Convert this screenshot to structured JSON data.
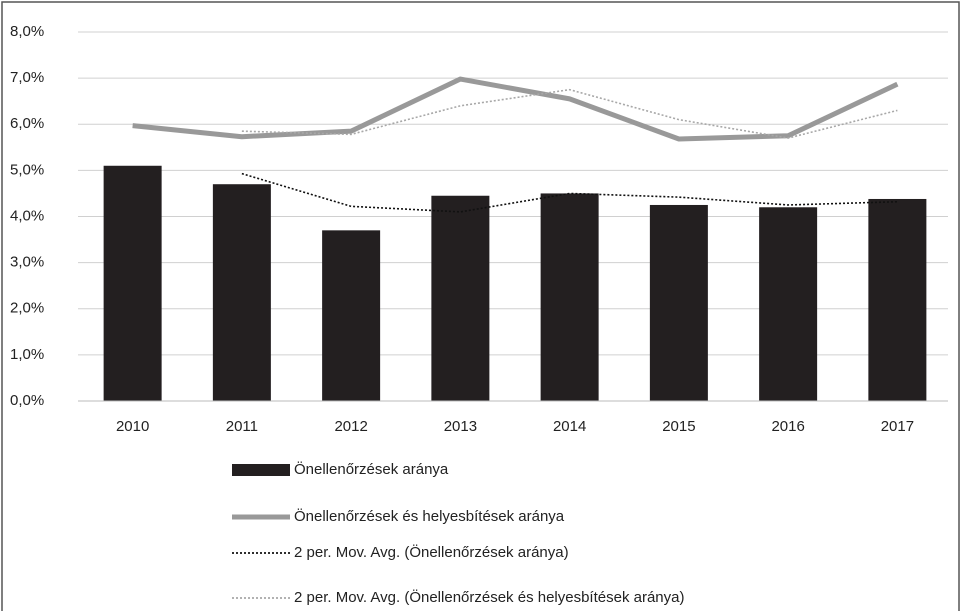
{
  "chart_data": {
    "type": "bar",
    "categories": [
      "2010",
      "2011",
      "2012",
      "2013",
      "2014",
      "2015",
      "2016",
      "2017"
    ],
    "series": [
      {
        "name": "Önellenőrzések aránya",
        "type": "bar",
        "color": "#231f20",
        "values": [
          5.1,
          4.7,
          3.7,
          4.45,
          4.5,
          4.25,
          4.2,
          4.38
        ]
      },
      {
        "name": "Önellenőrzések és helyesbítések aránya",
        "type": "line",
        "color": "#999999",
        "values": [
          5.97,
          5.73,
          5.85,
          6.98,
          6.55,
          5.68,
          5.75,
          6.87
        ]
      },
      {
        "name": "2 per. Mov. Avg. (Önellenőrzések aránya)",
        "type": "dotted",
        "color": "#111111",
        "values": [
          null,
          4.93,
          4.22,
          4.1,
          4.5,
          4.42,
          4.25,
          4.32
        ]
      },
      {
        "name": "2 per. Mov. Avg. (Önellenőrzések és helyesbítések aránya)",
        "type": "dotted",
        "color": "#a8a8a8",
        "values": [
          null,
          5.85,
          5.78,
          6.4,
          6.75,
          6.1,
          5.7,
          6.3
        ]
      }
    ],
    "ylim": [
      0,
      8
    ],
    "yticks": [
      {
        "value": 0,
        "label": "0,0%"
      },
      {
        "value": 1,
        "label": "1,0%"
      },
      {
        "value": 2,
        "label": "2,0%"
      },
      {
        "value": 3,
        "label": "3,0%"
      },
      {
        "value": 4,
        "label": "4,0%"
      },
      {
        "value": 5,
        "label": "5,0%"
      },
      {
        "value": 6,
        "label": "6,0%"
      },
      {
        "value": 7,
        "label": "7,0%"
      },
      {
        "value": 8,
        "label": "8,0%"
      }
    ],
    "grid": true,
    "legend": "bottom"
  }
}
